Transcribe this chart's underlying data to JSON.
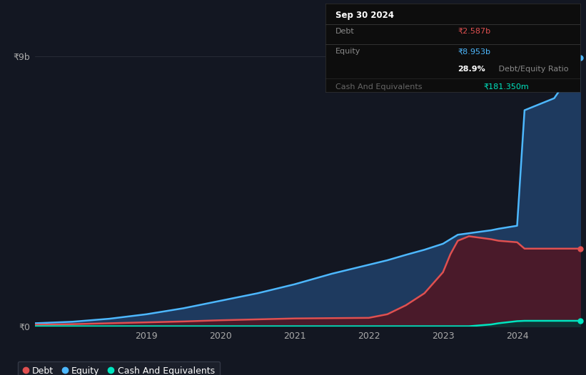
{
  "bg_color": "#131722",
  "plot_bg_color": "#131722",
  "grid_color": "#2a2e39",
  "debt_color": "#e05050",
  "equity_color": "#4db8ff",
  "cash_color": "#00e5c0",
  "fill_equity_color": "#1e3a5f",
  "fill_debt_color": "#4a1a2a",
  "fill_cash_color": "#0a3535",
  "y_label_0": "₹0",
  "y_label_9b": "₹9b",
  "infobox_title": "Sep 30 2024",
  "debt_label": "Debt",
  "equity_label": "Equity",
  "cash_label": "Cash And Equivalents",
  "debt_val": "₹2.587b",
  "equity_val": "₹8.953b",
  "ratio_val": "28.9%",
  "ratio_label": " Debt/Equity Ratio",
  "cash_val": "₹181.350m",
  "x_ticks": [
    2019,
    2020,
    2021,
    2022,
    2023,
    2024
  ],
  "ylim": [
    0,
    9000000000
  ],
  "xlim_start": 2017.5,
  "xlim_end": 2024.85,
  "years": [
    2017.5,
    2018.0,
    2018.5,
    2019.0,
    2019.5,
    2020.0,
    2020.5,
    2021.0,
    2021.5,
    2021.75,
    2022.0,
    2022.25,
    2022.5,
    2022.75,
    2023.0,
    2023.1,
    2023.2,
    2023.35,
    2023.5,
    2023.65,
    2023.75,
    2024.0,
    2024.1,
    2024.5,
    2024.75,
    2024.85
  ],
  "equity": [
    100000000,
    150000000,
    250000000,
    400000000,
    600000000,
    850000000,
    1100000000,
    1400000000,
    1750000000,
    1900000000,
    2050000000,
    2200000000,
    2380000000,
    2550000000,
    2750000000,
    2900000000,
    3050000000,
    3100000000,
    3150000000,
    3200000000,
    3250000000,
    3350000000,
    7200000000,
    7600000000,
    8500000000,
    8953000000
  ],
  "debt": [
    50000000,
    70000000,
    100000000,
    130000000,
    160000000,
    200000000,
    230000000,
    260000000,
    270000000,
    275000000,
    280000000,
    400000000,
    700000000,
    1100000000,
    1800000000,
    2400000000,
    2850000000,
    3000000000,
    2950000000,
    2900000000,
    2850000000,
    2800000000,
    2587000000,
    2587000000,
    2587000000,
    2587000000
  ],
  "cash": [
    0,
    0,
    0,
    0,
    0,
    0,
    0,
    0,
    0,
    0,
    0,
    0,
    0,
    0,
    0,
    0,
    0,
    0,
    30000000,
    60000000,
    100000000,
    170000000,
    181350000,
    181350000,
    181350000,
    181350000
  ],
  "legend_items": [
    "Debt",
    "Equity",
    "Cash And Equivalents"
  ]
}
